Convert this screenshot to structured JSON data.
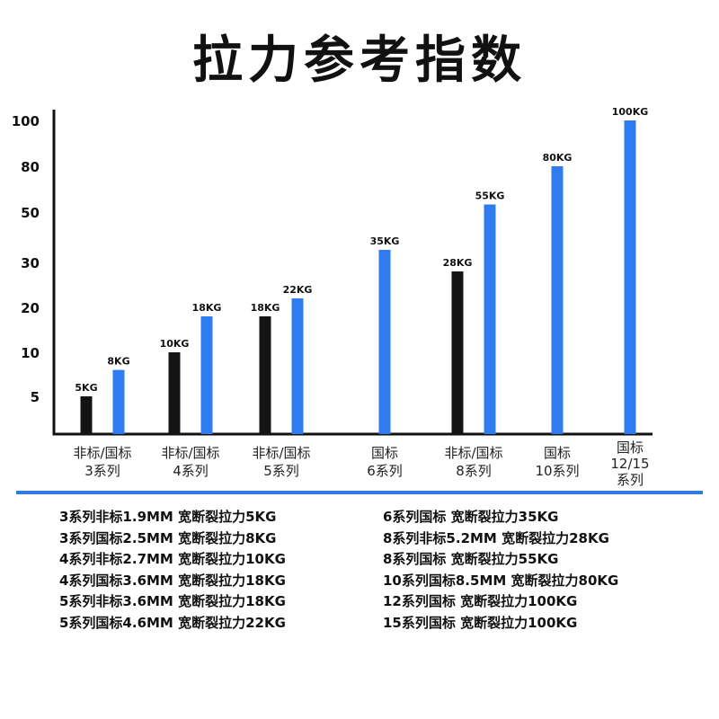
{
  "title": "拉力参考指数",
  "colors": {
    "black_bar": "#141414",
    "blue_bar": "#2f7cf0",
    "divider": "#2f78e6",
    "axis": "#111111"
  },
  "chart_data": {
    "type": "bar",
    "title": "拉力参考指数",
    "xlabel": "",
    "ylabel": "",
    "y_ticks": [
      "5",
      "10",
      "20",
      "30",
      "50",
      "80",
      "100"
    ],
    "grid": false,
    "legend": "none",
    "categories": [
      [
        "非标/国标",
        "3系列"
      ],
      [
        "非标/国标",
        "4系列"
      ],
      [
        "非标/国标",
        "5系列"
      ],
      [
        "国标",
        "6系列"
      ],
      [
        "非标/国标",
        "8系列"
      ],
      [
        "国标",
        "10系列"
      ],
      [
        "国标",
        "12/15",
        "系列"
      ]
    ],
    "series": [
      {
        "values": [
          5,
          10,
          18,
          null,
          28,
          null,
          null
        ],
        "labels": [
          "5KG",
          "10KG",
          "18KG",
          null,
          "28KG",
          null,
          null
        ],
        "color": "#141414"
      },
      {
        "values": [
          8,
          18,
          22,
          35,
          55,
          80,
          100
        ],
        "labels": [
          "8KG",
          "18KG",
          "22KG",
          "35KG",
          "55KG",
          "80KG",
          "100KG"
        ],
        "color": "#2f7cf0"
      }
    ]
  },
  "specs": {
    "left": [
      "3系列非标1.9MM 宽断裂拉力5KG",
      "3系列国标2.5MM 宽断裂拉力8KG",
      "4系列非标2.7MM 宽断裂拉力10KG",
      "4系列国标3.6MM 宽断裂拉力18KG",
      "5系列非标3.6MM 宽断裂拉力18KG",
      "5系列国标4.6MM 宽断裂拉力22KG"
    ],
    "right": [
      "6系列国标 宽断裂拉力35KG",
      "8系列非标5.2MM 宽断裂拉力28KG",
      "8系列国标 宽断裂拉力55KG",
      "10系列国标8.5MM 宽断裂拉力80KG",
      "12系列国标 宽断裂拉力100KG",
      "15系列国标 宽断裂拉力100KG"
    ]
  }
}
